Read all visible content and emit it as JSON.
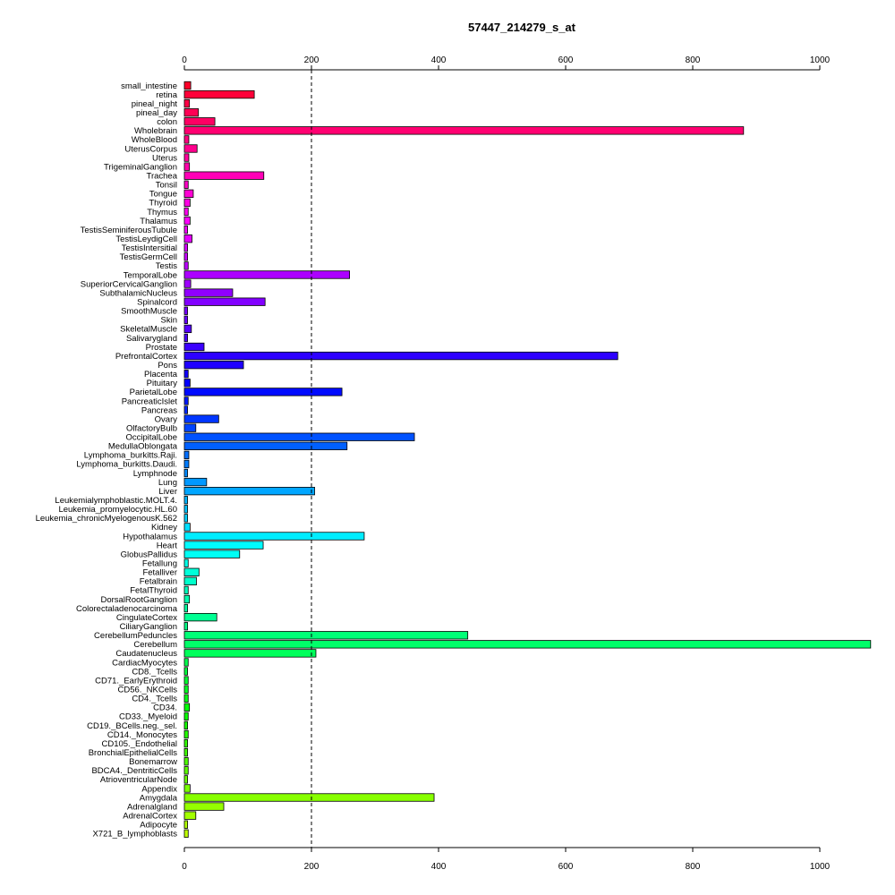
{
  "chart_data": {
    "type": "bar",
    "orientation": "horizontal",
    "title": "57447_214279_s_at",
    "xlabel": "",
    "ylabel": "",
    "xlim": [
      0,
      1000
    ],
    "xticks": [
      0,
      200,
      400,
      600,
      800,
      1000
    ],
    "reference_line": 200,
    "grid": false,
    "categories": [
      "small_intestine",
      "retina",
      "pineal_night",
      "pineal_day",
      "colon",
      "Wholebrain",
      "WholeBlood",
      "UterusCorpus",
      "Uterus",
      "TrigeminalGanglion",
      "Trachea",
      "Tonsil",
      "Tongue",
      "Thyroid",
      "Thymus",
      "Thalamus",
      "TestisSeminiferousTubule",
      "TestisLeydigCell",
      "TestisIntersitial",
      "TestisGermCell",
      "Testis",
      "TemporalLobe",
      "SuperiorCervicalGanglion",
      "SubthalamicNucleus",
      "Spinalcord",
      "SmoothMuscle",
      "Skin",
      "SkeletalMuscle",
      "Salivarygland",
      "Prostate",
      "PrefrontalCortex",
      "Pons",
      "Placenta",
      "Pituitary",
      "ParietalLobe",
      "PancreaticIslet",
      "Pancreas",
      "Ovary",
      "OlfactoryBulb",
      "OccipitalLobe",
      "MedullaOblongata",
      "Lymphoma_burkitts.Raji.",
      "Lymphoma_burkitts.Daudi.",
      "Lymphnode",
      "Lung",
      "Liver",
      "Leukemialymphoblastic.MOLT.4.",
      "Leukemia_promyelocytic.HL.60",
      "Leukemia_chronicMyelogenousK.562",
      "Kidney",
      "Hypothalamus",
      "Heart",
      "GlobusPallidus",
      "Fetallung",
      "Fetalliver",
      "Fetalbrain",
      "FetalThyroid",
      "DorsalRootGanglion",
      "Colorectaladenocarcinoma",
      "CingulateCortex",
      "CiliaryGanglion",
      "CerebellumPeduncles",
      "Cerebellum",
      "Caudatenucleus",
      "CardiacMyocytes",
      "CD8._Tcells",
      "CD71._EarlyErythroid",
      "CD56._NKCells",
      "CD4._Tcells",
      "CD34.",
      "CD33._Myeloid",
      "CD19._BCells.neg._sel.",
      "CD14._Monocytes",
      "CD105._Endothelial",
      "BronchialEpithelialCells",
      "Bonemarrow",
      "BDCA4._DentriticCells",
      "AtrioventricularNode",
      "Appendix",
      "Amygdala",
      "Adrenalgland",
      "AdrenalCortex",
      "Adipocyte",
      "X721_B_lymphoblasts"
    ],
    "values": [
      10,
      110,
      8,
      22,
      48,
      880,
      7,
      20,
      7,
      8,
      125,
      6,
      14,
      9,
      6,
      9,
      5,
      12,
      5,
      5,
      6,
      260,
      10,
      76,
      127,
      5,
      5,
      11,
      5,
      31,
      682,
      93,
      6,
      9,
      248,
      6,
      5,
      54,
      18,
      362,
      256,
      7,
      7,
      5,
      35,
      205,
      5,
      5,
      5,
      9,
      283,
      124,
      87,
      6,
      23,
      19,
      6,
      8,
      5,
      51,
      5,
      446,
      1080,
      207,
      6,
      5,
      6,
      6,
      6,
      8,
      6,
      5,
      6,
      5,
      5,
      6,
      6,
      5,
      9,
      393,
      62,
      18,
      5,
      6
    ]
  }
}
